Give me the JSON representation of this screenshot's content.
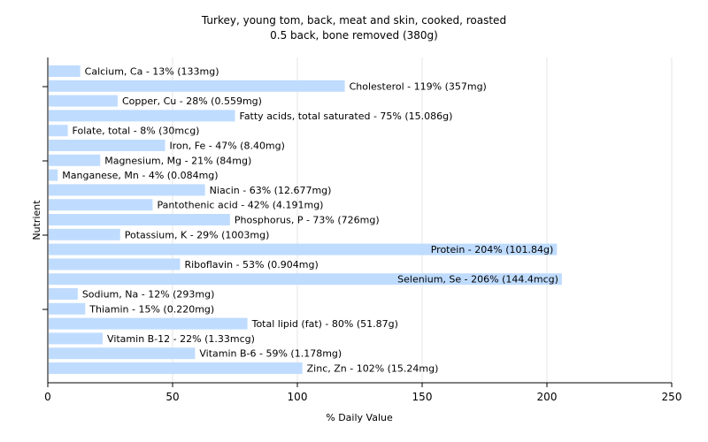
{
  "chart_data": {
    "type": "bar",
    "orientation": "horizontal",
    "title": "Turkey, young tom, back, meat and skin, cooked, roasted",
    "subtitle": "0.5 back, bone removed (380g)",
    "xlabel": "% Daily Value",
    "ylabel": "Nutrient",
    "xlim": [
      0,
      250
    ],
    "xticks": [
      "0",
      "50",
      "100",
      "150",
      "200",
      "250"
    ],
    "grid": true,
    "categories": [
      "Calcium, Ca",
      "Cholesterol",
      "Copper, Cu",
      "Fatty acids, total saturated",
      "Folate, total",
      "Iron, Fe",
      "Magnesium, Mg",
      "Manganese, Mn",
      "Niacin",
      "Pantothenic acid",
      "Phosphorus, P",
      "Potassium, K",
      "Protein",
      "Riboflavin",
      "Selenium, Se",
      "Sodium, Na",
      "Thiamin",
      "Total lipid (fat)",
      "Vitamin B-12",
      "Vitamin B-6",
      "Zinc, Zn"
    ],
    "values": [
      13,
      119,
      28,
      75,
      8,
      47,
      21,
      4,
      63,
      42,
      73,
      29,
      204,
      53,
      206,
      12,
      15,
      80,
      22,
      59,
      102
    ],
    "labels": [
      "Calcium, Ca - 13% (133mg)",
      "Cholesterol - 119% (357mg)",
      "Copper, Cu - 28% (0.559mg)",
      "Fatty acids, total saturated - 75% (15.086g)",
      "Folate, total - 8% (30mcg)",
      "Iron, Fe - 47% (8.40mg)",
      "Magnesium, Mg - 21% (84mg)",
      "Manganese, Mn - 4% (0.084mg)",
      "Niacin - 63% (12.677mg)",
      "Pantothenic acid - 42% (4.191mg)",
      "Phosphorus, P - 73% (726mg)",
      "Potassium, K - 29% (1003mg)",
      "Protein - 204% (101.84g)",
      "Riboflavin - 53% (0.904mg)",
      "Selenium, Se - 206% (144.4mcg)",
      "Sodium, Na - 12% (293mg)",
      "Thiamin - 15% (0.220mg)",
      "Total lipid (fat) - 80% (51.87g)",
      "Vitamin B-12 - 22% (1.33mcg)",
      "Vitamin B-6 - 59% (1.178mg)",
      "Zinc, Zn - 102% (15.24mg)"
    ],
    "bar_color": "#bfdcff"
  }
}
